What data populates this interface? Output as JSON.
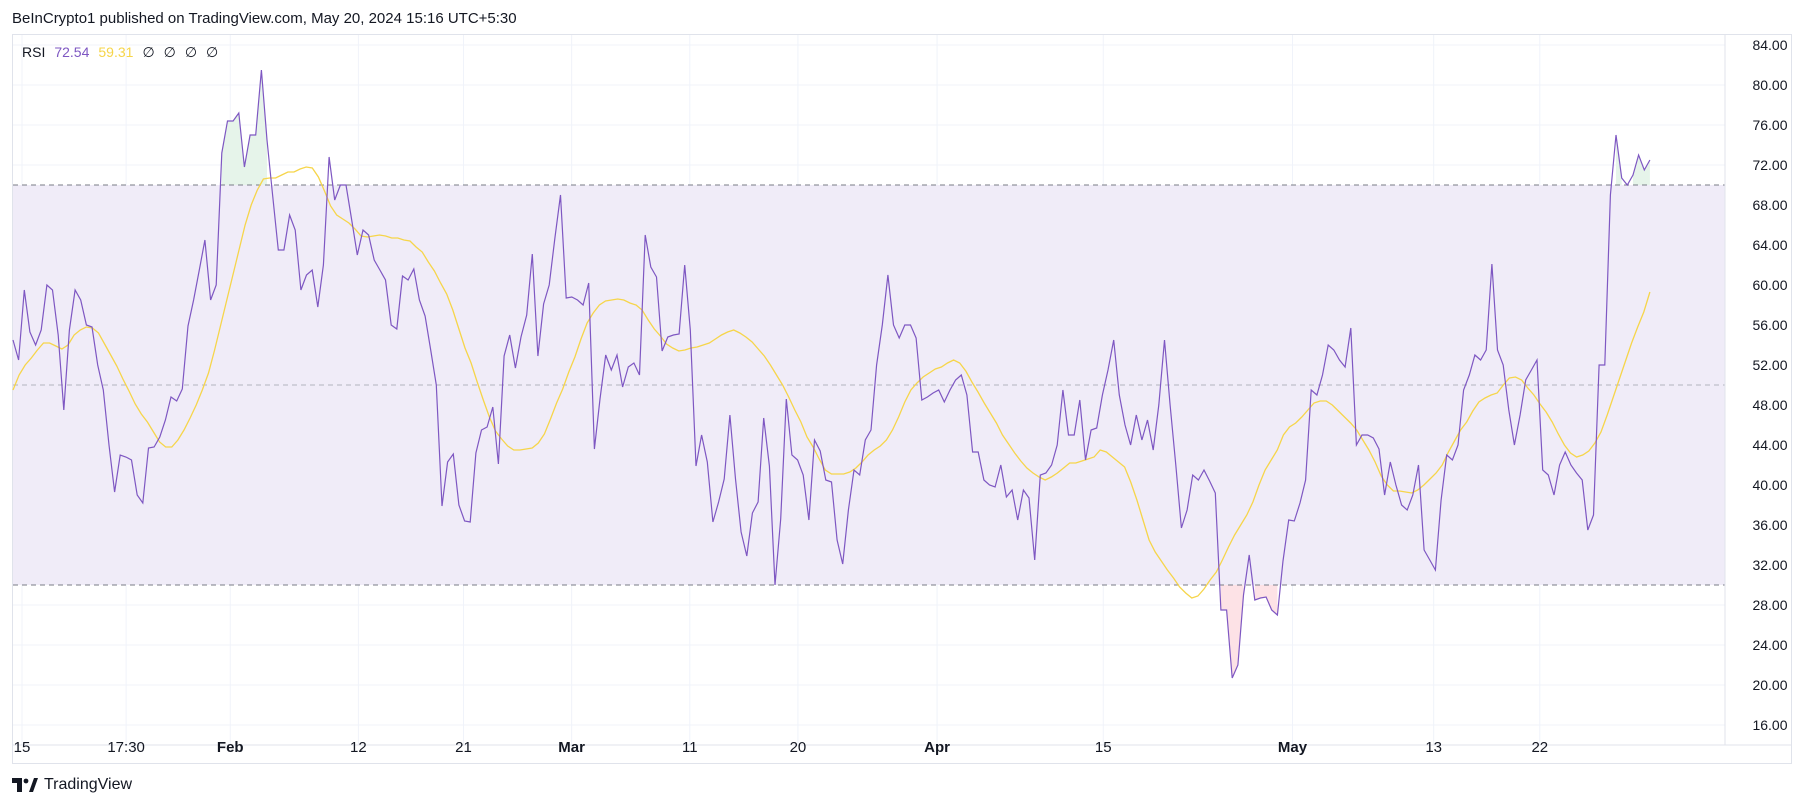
{
  "header": {
    "attribution": "BeInCrypto1 published on TradingView.com, May 20, 2024 15:16 UTC+5:30"
  },
  "legend": {
    "name": "RSI",
    "rsi_value": "72.54",
    "ma_value": "59.31",
    "extras": [
      "∅",
      "∅",
      "∅",
      "∅"
    ]
  },
  "footer": {
    "brand": "TradingView"
  },
  "colors": {
    "rsi": "#7e57c2",
    "ma": "#f6d54a",
    "band": "#f0ecf8",
    "grid": "#f0f3fa",
    "overbought_fill": "#e6f4ea",
    "oversold_fill": "#fde2e6"
  },
  "chart_data": {
    "type": "line",
    "title": "RSI",
    "ylim": [
      14,
      85
    ],
    "yticks": [
      "84.00",
      "80.00",
      "76.00",
      "72.00",
      "68.00",
      "64.00",
      "60.00",
      "56.00",
      "52.00",
      "48.00",
      "44.00",
      "40.00",
      "36.00",
      "32.00",
      "28.00",
      "24.00",
      "20.00",
      "16.00"
    ],
    "ytick_values": [
      84,
      80,
      76,
      72,
      68,
      64,
      60,
      56,
      52,
      48,
      44,
      40,
      36,
      32,
      28,
      24,
      20,
      16
    ],
    "bands": {
      "upper": 70,
      "middle": 50,
      "lower": 30
    },
    "xlim": [
      0,
      171
    ],
    "xticks": [
      {
        "label": "15",
        "x": 0.9
      },
      {
        "label": "17:30",
        "x": 11.3
      },
      {
        "label": "Feb",
        "x": 21.7
      },
      {
        "label": "12",
        "x": 34.5
      },
      {
        "label": "21",
        "x": 45
      },
      {
        "label": "Mar",
        "x": 55.8
      },
      {
        "label": "11",
        "x": 67.6
      },
      {
        "label": "20",
        "x": 78.4
      },
      {
        "label": "Apr",
        "x": 92.3
      },
      {
        "label": "15",
        "x": 108.9
      },
      {
        "label": "May",
        "x": 127.8
      },
      {
        "label": "13",
        "x": 141.9
      },
      {
        "label": "22",
        "x": 152.5
      }
    ],
    "series": [
      {
        "name": "RSI",
        "values": [
          54.5,
          52.5,
          59.5,
          55.3,
          54,
          55.5,
          60,
          59.5,
          55,
          47.5,
          55.5,
          59.5,
          58.5,
          56,
          55.8,
          52,
          49.5,
          44,
          39.3,
          43,
          42.8,
          42.5,
          39,
          38.2,
          43.7,
          43.8,
          44.8,
          46.5,
          48.8,
          48.4,
          49.6,
          55.9,
          58.5,
          61.5,
          64.5,
          58.5,
          60,
          73.2,
          76.4,
          76.4,
          77.2,
          71.8,
          75,
          75,
          81.5,
          74.5,
          69,
          63.5,
          63.5,
          67,
          65.5,
          59.5,
          61,
          61.5,
          57.8,
          62,
          72.8,
          68.5,
          70,
          70,
          66.5,
          63,
          65.5,
          65,
          62.5,
          61.5,
          60.5,
          56,
          55.6,
          60.9,
          60.5,
          61.6,
          58.5,
          56.9,
          53.5,
          50,
          37.9,
          42.3,
          43.1,
          38,
          36.4,
          36.3,
          43.2,
          45.5,
          45.8,
          47.8,
          42.1,
          52.9,
          55,
          51.7,
          54.8,
          57,
          63.1,
          52.9,
          58.1,
          60,
          64.7,
          69,
          58.7,
          58.8,
          58.5,
          58,
          60.2,
          43.6,
          48.6,
          53,
          51.5,
          53,
          49.8,
          51.8,
          52.2,
          51,
          65,
          61.8,
          60.8,
          53.4,
          54.8,
          55,
          55.1,
          62,
          55.5,
          41.9,
          45,
          42.3,
          36.3,
          38.3,
          40.6,
          47,
          40.6,
          35.3,
          32.9,
          37.2,
          38.3,
          46.7,
          41.9,
          30,
          36.6,
          48.6,
          43,
          42.5,
          41,
          36.5,
          44.5,
          43.4,
          40.5,
          40.3,
          34.5,
          32.1,
          37.5,
          41.5,
          41,
          44.5,
          45.5,
          52,
          56,
          61,
          56,
          54.7,
          56,
          56,
          54.7,
          48.5,
          48.8,
          49.2,
          49.5,
          48.3,
          49.5,
          50.5,
          51,
          49,
          43.3,
          43.3,
          40.5,
          40,
          39.8,
          42,
          38.8,
          39.5,
          36.5,
          39.5,
          38.7,
          32.5,
          41,
          41.2,
          42,
          44,
          49.5,
          45,
          45,
          48.5,
          42.5,
          45.5,
          45.7,
          49,
          51.5,
          54.5,
          49,
          46,
          44,
          47,
          44.5,
          46.5,
          43.5,
          48,
          54.5,
          48,
          42,
          35.7,
          37.5,
          41,
          40.5,
          41.5,
          40.4,
          39.2,
          27.5,
          27.5,
          20.7,
          22,
          29,
          33,
          28.5,
          28.7,
          28.8,
          27.5,
          27,
          32.4,
          36.5,
          36.4,
          38.2,
          40.5,
          49.5,
          49,
          51,
          54,
          53.5,
          52.5,
          51.8,
          55.7,
          44,
          45,
          45,
          44.7,
          43.6,
          39,
          42.3,
          40,
          38,
          37.5,
          39,
          42,
          33.5,
          32.5,
          31.5,
          38.5,
          43,
          42.5,
          44,
          49.5,
          51,
          53,
          52.5,
          53.5,
          62.1,
          53.5,
          52,
          47.5,
          44,
          47,
          50.5,
          51.5,
          52.5,
          41.5,
          41,
          39,
          42,
          43.3,
          42,
          41.2,
          40.5,
          35.5,
          37,
          52,
          52,
          69,
          75,
          70.7,
          70,
          71,
          73,
          71.5,
          72.5
        ]
      },
      {
        "name": "RSI MA",
        "values": [
          49.5,
          51,
          52,
          52.7,
          53.5,
          54.2,
          54.2,
          53.9,
          53.6,
          54,
          55,
          55.5,
          55.8,
          55.7,
          55.2,
          54.1,
          53,
          51.9,
          50.6,
          49.4,
          48.1,
          47.1,
          46.3,
          45.3,
          44.3,
          43.8,
          43.8,
          44.5,
          45.5,
          46.7,
          48,
          49.5,
          51.2,
          53.5,
          56,
          58.5,
          61,
          63.5,
          66,
          68,
          69.5,
          70.6,
          70.7,
          70.7,
          71,
          71.3,
          71.3,
          71.6,
          71.8,
          71.7,
          70.8,
          69.4,
          67.9,
          67,
          66.6,
          66.2,
          65.6,
          64.9,
          64.8,
          64.9,
          65,
          64.9,
          64.7,
          64.7,
          64.5,
          64.4,
          63.8,
          63.3,
          62.3,
          61.4,
          60.2,
          59.1,
          57.5,
          55.6,
          53.7,
          52.2,
          50.3,
          48.5,
          46.8,
          45.4,
          44.6,
          43.9,
          43.5,
          43.5,
          43.6,
          43.7,
          44.2,
          45.1,
          46.6,
          48.2,
          49.6,
          51.3,
          52.8,
          54.6,
          56.2,
          57.2,
          58,
          58.4,
          58.5,
          58.6,
          58.5,
          58.2,
          58,
          57.5,
          56.5,
          55.6,
          54.9,
          54.1,
          53.7,
          53.4,
          53.5,
          53.7,
          53.8,
          54,
          54.2,
          54.6,
          55,
          55.3,
          55.5,
          55.2,
          54.8,
          54.3,
          53.6,
          52.9,
          52,
          51,
          50,
          48.8,
          47.5,
          46.3,
          44.8,
          43.8,
          42.6,
          41.5,
          41.1,
          41.1,
          41.1,
          41.3,
          41.7,
          42.3,
          43,
          43.5,
          43.9,
          44.5,
          45.5,
          46.8,
          48.3,
          49.5,
          50.2,
          50.8,
          51.2,
          51.6,
          51.8,
          52.2,
          52.5,
          52.2,
          51.4,
          50.3,
          49.3,
          48.2,
          47.2,
          46.2,
          45,
          44.1,
          43.2,
          42.4,
          41.7,
          41.2,
          40.8,
          40.5,
          40.8,
          41.2,
          41.7,
          42.2,
          42.2,
          42.4,
          42.6,
          42.8,
          43.5,
          43.3,
          42.8,
          42.3,
          41.8,
          40.3,
          38.5,
          36.5,
          34.5,
          33.3,
          32.4,
          31.5,
          30.7,
          29.8,
          29.2,
          28.7,
          28.9,
          29.6,
          30.5,
          31.3,
          32.5,
          33.8,
          35,
          36,
          37,
          38.3,
          40,
          41.5,
          42.5,
          43.5,
          45,
          45.8,
          46.2,
          46.8,
          47.5,
          48.2,
          48.4,
          48.4,
          48,
          47.4,
          46.8,
          46.2,
          45.5,
          44.5,
          43.5,
          42.3,
          40.9,
          40,
          39.4,
          39.4,
          39.3,
          39.2,
          39.5,
          40,
          40.6,
          41.2,
          42,
          43.3,
          44.4,
          45.5,
          46.3,
          47.4,
          48.3,
          48.7,
          49,
          49.2,
          50,
          50.7,
          50.8,
          50.5,
          49.7,
          49,
          48.1,
          47.3,
          46.3,
          45.1,
          44,
          43.2,
          42.8,
          43,
          43.4,
          44.2,
          45.3,
          47,
          48.8,
          50.6,
          52.4,
          54.2,
          55.8,
          57.3,
          59.3
        ]
      }
    ]
  }
}
